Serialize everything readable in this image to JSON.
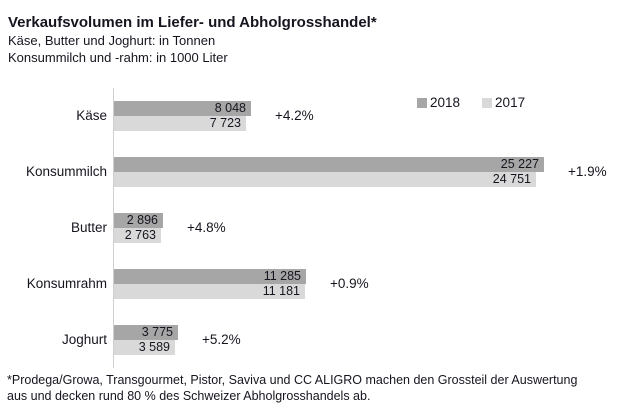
{
  "header": {
    "title": "Verkaufsvolumen im Liefer- und Abholgrosshandel*",
    "subtitle1": "Käse, Butter und Joghurt: in Tonnen",
    "subtitle2": "Konsummilch und -rahm: in 1000 Liter"
  },
  "legend": {
    "items": [
      {
        "label": "2018",
        "color": "#a6a6a6"
      },
      {
        "label": "2017",
        "color": "#d9d9d9"
      }
    ]
  },
  "chart_data": {
    "type": "bar",
    "orientation": "horizontal",
    "title": "Verkaufsvolumen im Liefer- und Abholgrosshandel*",
    "units_note_tonnen": "Käse, Butter und Joghurt: in Tonnen",
    "units_note_liter": "Konsummilch und -rahm: in 1000 Liter",
    "categories": [
      "Käse",
      "Konsummilch",
      "Butter",
      "Konsumrahm",
      "Joghurt"
    ],
    "series": [
      {
        "name": "2018",
        "color": "#a6a6a6",
        "values": [
          8048,
          25227,
          2896,
          11285,
          3775
        ],
        "labels": [
          "8 048",
          "25 227",
          "2 896",
          "11 285",
          "3 775"
        ]
      },
      {
        "name": "2017",
        "color": "#d9d9d9",
        "values": [
          7723,
          24751,
          2763,
          11181,
          3589
        ],
        "labels": [
          "7 723",
          "24 751",
          "2 763",
          "11 181",
          "3 589"
        ]
      }
    ],
    "change_labels": [
      "+4.2%",
      "+1.9%",
      "+4.8%",
      "+0.9%",
      "+5.2%"
    ],
    "xlim": [
      0,
      25227
    ],
    "legend_position": "top-right",
    "grid": false,
    "axis_labels_shown": false
  },
  "footnote": {
    "line1": "*Prodega/Growa, Transgourmet, Pistor, Saviva und CC ALIGRO  machen den Grossteil der Auswertung",
    "line2": "aus und decken rund 80 % des Schweizer Abholgrosshandels ab."
  }
}
